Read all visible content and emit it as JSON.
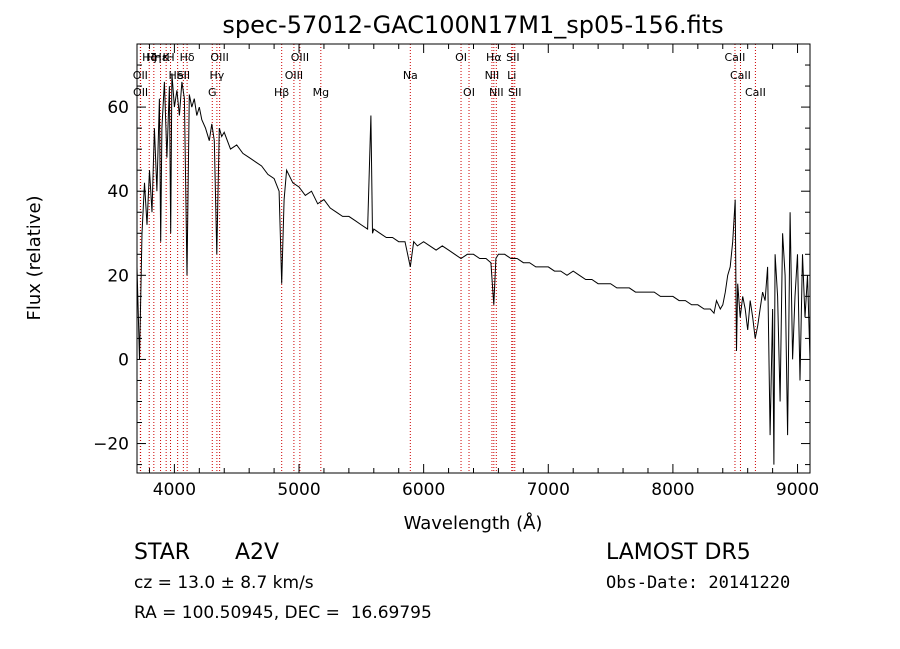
{
  "chart_data": {
    "type": "line",
    "title": "spec-57012-GAC100N17M1_sp05-156.fits",
    "xlabel": "Wavelength (Å)",
    "ylabel": "Flux (relative)",
    "xlim": [
      3700,
      9100
    ],
    "ylim": [
      -27,
      75
    ],
    "xticks": [
      4000,
      5000,
      6000,
      7000,
      8000,
      9000
    ],
    "yticks": [
      -20,
      0,
      20,
      40,
      60
    ],
    "line_color": "#000000",
    "marker_color": "#cc0000",
    "series": [
      {
        "x": [
          3700,
          3720,
          3740,
          3760,
          3780,
          3800,
          3820,
          3840,
          3860,
          3880,
          3890,
          3900,
          3920,
          3940,
          3960,
          3970,
          3980,
          4000,
          4020,
          4040,
          4060,
          4080,
          4101,
          4120,
          4140,
          4160,
          4180,
          4200,
          4220,
          4250,
          4280,
          4300,
          4320,
          4340,
          4360,
          4380,
          4400,
          4450,
          4500,
          4550,
          4600,
          4650,
          4700,
          4750,
          4800,
          4840,
          4861,
          4880,
          4900,
          4950,
          5000,
          5050,
          5100,
          5150,
          5200,
          5250,
          5300,
          5350,
          5400,
          5450,
          5500,
          5550,
          5577,
          5590,
          5600,
          5650,
          5700,
          5750,
          5800,
          5850,
          5893,
          5920,
          5950,
          6000,
          6050,
          6100,
          6150,
          6200,
          6250,
          6300,
          6350,
          6400,
          6450,
          6500,
          6540,
          6563,
          6580,
          6600,
          6650,
          6700,
          6750,
          6800,
          6850,
          6900,
          6950,
          7000,
          7050,
          7100,
          7150,
          7200,
          7250,
          7300,
          7350,
          7400,
          7450,
          7500,
          7550,
          7600,
          7650,
          7700,
          7750,
          7800,
          7850,
          7900,
          7950,
          8000,
          8050,
          8100,
          8150,
          8200,
          8250,
          8300,
          8330,
          8350,
          8380,
          8400,
          8420,
          8440,
          8460,
          8480,
          8500,
          8510,
          8520,
          8540,
          8560,
          8580,
          8600,
          8620,
          8640,
          8660,
          8680,
          8700,
          8720,
          8740,
          8760,
          8780,
          8800,
          8810,
          8820,
          8840,
          8860,
          8880,
          8900,
          8920,
          8940,
          8960,
          8980,
          9000,
          9020,
          9040,
          9060,
          9080,
          9100
        ],
        "y": [
          22,
          0,
          30,
          42,
          32,
          45,
          35,
          55,
          40,
          62,
          28,
          55,
          66,
          48,
          65,
          30,
          68,
          60,
          64,
          58,
          66,
          62,
          20,
          63,
          60,
          62,
          58,
          60,
          57,
          55,
          52,
          56,
          52,
          25,
          55,
          53,
          54,
          50,
          51,
          49,
          48,
          47,
          46,
          44,
          43,
          40,
          18,
          38,
          45,
          42,
          41,
          39,
          40,
          37,
          38,
          36,
          35,
          34,
          34,
          33,
          32,
          31,
          58,
          30,
          31,
          30,
          29,
          29,
          28,
          28,
          22,
          28,
          27,
          28,
          27,
          26,
          27,
          26,
          25,
          24,
          25,
          25,
          24,
          24,
          23,
          13,
          24,
          25,
          25,
          24,
          24,
          23,
          23,
          22,
          22,
          22,
          21,
          21,
          20,
          21,
          20,
          19,
          19,
          18,
          18,
          18,
          17,
          17,
          17,
          16,
          16,
          16,
          16,
          15,
          15,
          15,
          14,
          14,
          13,
          13,
          12,
          12,
          11,
          14,
          12,
          13,
          16,
          20,
          22,
          28,
          38,
          2,
          18,
          10,
          15,
          12,
          7,
          14,
          10,
          5,
          8,
          12,
          16,
          14,
          22,
          -18,
          12,
          -25,
          25,
          15,
          -10,
          30,
          20,
          -18,
          35,
          0,
          15,
          25,
          -5,
          25,
          10,
          20,
          0
        ]
      }
    ],
    "lines": [
      {
        "x": 3727,
        "label": "OII",
        "row": 2
      },
      {
        "x": 3729,
        "label": "OII",
        "row": 3
      },
      {
        "x": 3798,
        "label": "Hζ",
        "row": 1
      },
      {
        "x": 3835,
        "label": "Hη",
        "row": 1
      },
      {
        "x": 3889,
        "label": "Hε",
        "row": 1
      },
      {
        "x": 3934,
        "label": "K",
        "row": 1
      },
      {
        "x": 3969,
        "label": "H",
        "row": 1
      },
      {
        "x": 4026,
        "label": "HeI",
        "row": 2
      },
      {
        "x": 4072,
        "label": "SII",
        "row": 2
      },
      {
        "x": 4102,
        "label": "Hδ",
        "row": 1
      },
      {
        "x": 4304,
        "label": "G",
        "row": 3
      },
      {
        "x": 4341,
        "label": "Hγ",
        "row": 2
      },
      {
        "x": 4363,
        "label": "OIII",
        "row": 1
      },
      {
        "x": 4861,
        "label": "Hβ",
        "row": 3
      },
      {
        "x": 4959,
        "label": "OIII",
        "row": 2
      },
      {
        "x": 5007,
        "label": "OIII",
        "row": 1
      },
      {
        "x": 5175,
        "label": "Mg",
        "row": 3
      },
      {
        "x": 5893,
        "label": "Na",
        "row": 2
      },
      {
        "x": 6300,
        "label": "OI",
        "row": 1
      },
      {
        "x": 6364,
        "label": "OI",
        "row": 3
      },
      {
        "x": 6548,
        "label": "NII",
        "row": 2
      },
      {
        "x": 6563,
        "label": "Hα",
        "row": 1
      },
      {
        "x": 6583,
        "label": "NII",
        "row": 3
      },
      {
        "x": 6707,
        "label": "Li",
        "row": 2
      },
      {
        "x": 6716,
        "label": "SII",
        "row": 1
      },
      {
        "x": 6731,
        "label": "SII",
        "row": 3
      },
      {
        "x": 8498,
        "label": "CaII",
        "row": 1
      },
      {
        "x": 8542,
        "label": "CaII",
        "row": 2
      },
      {
        "x": 8662,
        "label": "CaII",
        "row": 3
      }
    ]
  },
  "info": {
    "class": "STAR",
    "subclass": "A2V",
    "survey": "LAMOST DR5",
    "cz": "cz = 13.0 ± 8.7 km/s",
    "obs_date": "Obs-Date: 20141220",
    "coords": "RA = 100.50945, DEC =  16.69795"
  }
}
